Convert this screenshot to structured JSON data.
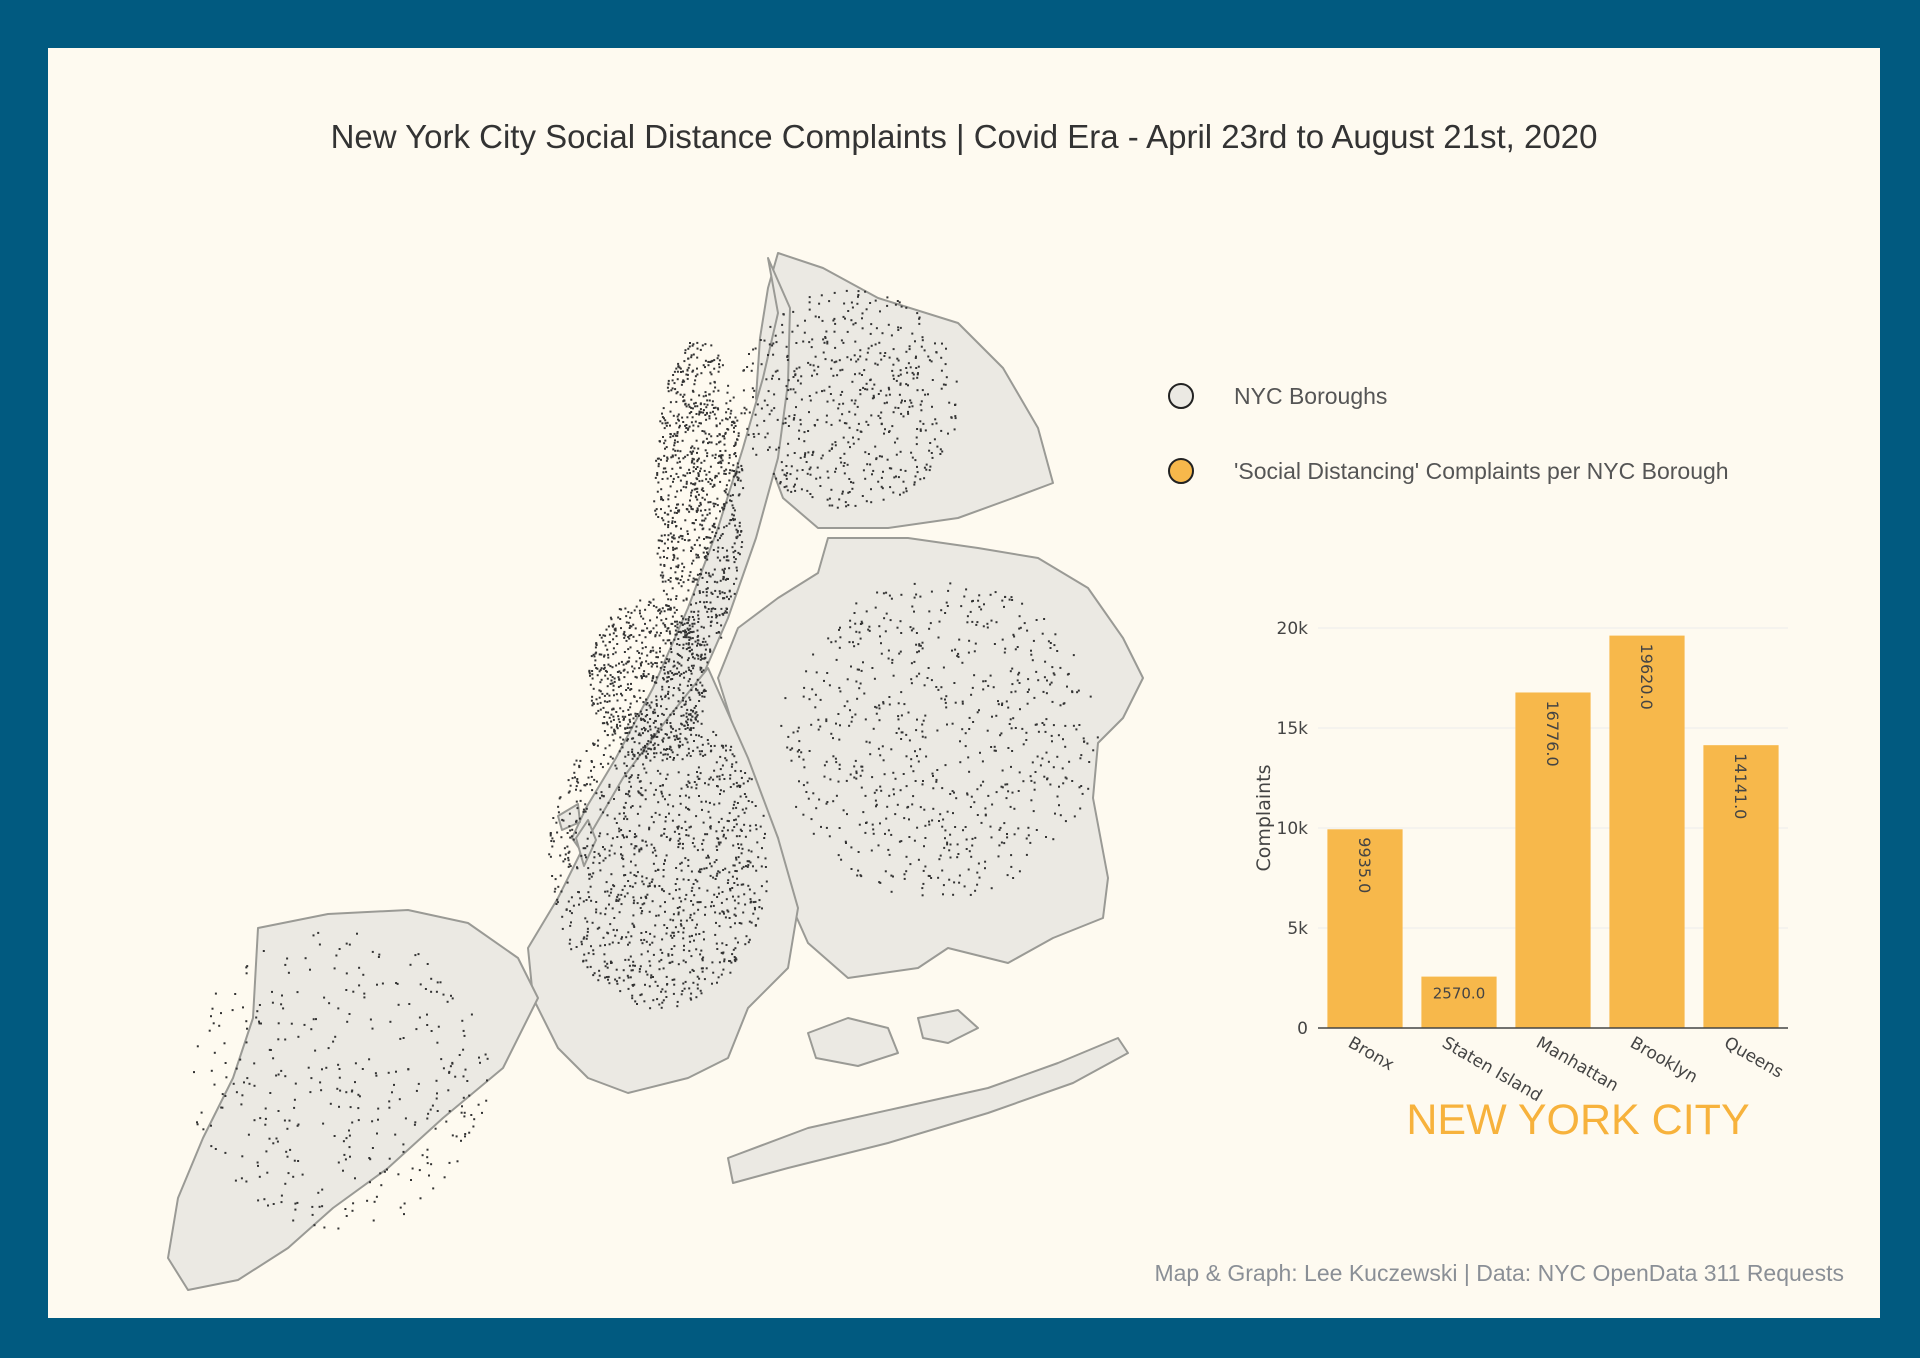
{
  "title": "New York City Social Distance Complaints | Covid Era - April 23rd to August 21st, 2020",
  "legend": [
    {
      "label": "NYC Boroughs",
      "color": "#ebe9e3"
    },
    {
      "label": "'Social Distancing' Complaints per NYC Borough",
      "color": "#f7b84b"
    }
  ],
  "region_label": "NEW YORK CITY",
  "credit": "Map & Graph: Lee Kuczewski | Data: NYC OpenData 311 Requests",
  "colors": {
    "frame": "#015a80",
    "paper": "#fefaf0",
    "land": "#ebe9e3",
    "border": "#9a9a95",
    "points": "#333333",
    "bar": "#f7b84b",
    "accent": "#f7b23c"
  },
  "chart_data": {
    "type": "bar",
    "title": "",
    "xlabel": "",
    "ylabel": "Complaints",
    "categories": [
      "Bronx",
      "Staten Island",
      "Manhattan",
      "Brooklyn",
      "Queens"
    ],
    "values": [
      9935.0,
      2570.0,
      16776.0,
      19620.0,
      14141.0
    ],
    "data_labels": [
      "9935.0",
      "2570.0",
      "16776.0",
      "19620.0",
      "14141.0"
    ],
    "yticks": [
      0,
      5000,
      10000,
      15000,
      20000
    ],
    "ytick_labels": [
      "0",
      "5k",
      "10k",
      "15k",
      "20k"
    ],
    "ylim": [
      0,
      21000
    ],
    "grid": true
  }
}
